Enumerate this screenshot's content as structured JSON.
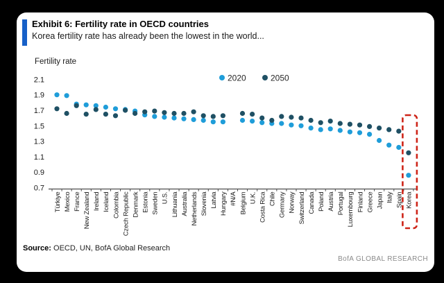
{
  "header": {
    "exhibit_title": "Exhibit 6: Fertility rate in OECD countries",
    "subtitle": "Korea fertility rate has already been the lowest in the world..."
  },
  "footer": {
    "source_label": "Source:",
    "source_text": " OECD, UN, BofA Global Research",
    "brand": "BofA GLOBAL RESEARCH"
  },
  "colors": {
    "accent_bar": "#1760C8",
    "background": "#000000",
    "card": "#FFFFFF",
    "axis": "#4d4d4d",
    "text": "#1a1a1a",
    "series_2020": "#1F9DD9",
    "series_2050": "#1F5064",
    "highlight_box": "#CE2418"
  },
  "chart_data": {
    "type": "scatter",
    "ylabel": "Fertility rate",
    "ylim": [
      0.7,
      2.1
    ],
    "yticks": [
      2.1,
      1.9,
      1.7,
      1.5,
      1.3,
      1.1,
      0.9,
      0.7
    ],
    "grid": false,
    "legend_position": "top-center",
    "highlight": {
      "category": "Korea",
      "style": "red-dashed-box"
    },
    "categories": [
      "Türkiye",
      "Mexico",
      "France",
      "New Zealand",
      "Ireland",
      "Iceland",
      "Colombia",
      "Czech Republic",
      "Denmark",
      "Estonia",
      "Sweden",
      "U.S.",
      "Lithuania",
      "Australia",
      "Netherlands",
      "Slovenia",
      "Latvia",
      "Hungary",
      "#N/A",
      "Belgium",
      "U.K.",
      "Costa Rica",
      "Chile",
      "Germany",
      "Norway",
      "Switzerland",
      "Canada",
      "Poland",
      "Austria",
      "Portugal",
      "Luxembourg",
      "Finland",
      "Greece",
      "Japan",
      "Italy",
      "Spain",
      "Korea"
    ],
    "series": [
      {
        "name": "2020",
        "color": "#1F9DD9",
        "values": [
          1.9,
          1.89,
          1.78,
          1.77,
          1.76,
          1.74,
          1.72,
          1.71,
          1.69,
          1.64,
          1.62,
          1.61,
          1.6,
          1.59,
          1.58,
          1.57,
          1.55,
          1.55,
          null,
          1.57,
          1.56,
          1.54,
          1.53,
          1.53,
          1.51,
          1.5,
          1.47,
          1.45,
          1.46,
          1.44,
          1.42,
          1.41,
          1.39,
          1.31,
          1.25,
          1.22,
          0.86
        ]
      },
      {
        "name": "2050",
        "color": "#1F5064",
        "values": [
          1.72,
          1.66,
          1.76,
          1.65,
          1.71,
          1.65,
          1.63,
          1.7,
          1.66,
          1.68,
          1.69,
          1.67,
          1.66,
          1.66,
          1.68,
          1.63,
          1.62,
          1.63,
          null,
          1.66,
          1.65,
          1.6,
          1.57,
          1.62,
          1.61,
          1.6,
          1.57,
          1.54,
          1.56,
          1.53,
          1.52,
          1.51,
          1.49,
          1.47,
          1.45,
          1.43,
          1.15
        ]
      }
    ]
  }
}
